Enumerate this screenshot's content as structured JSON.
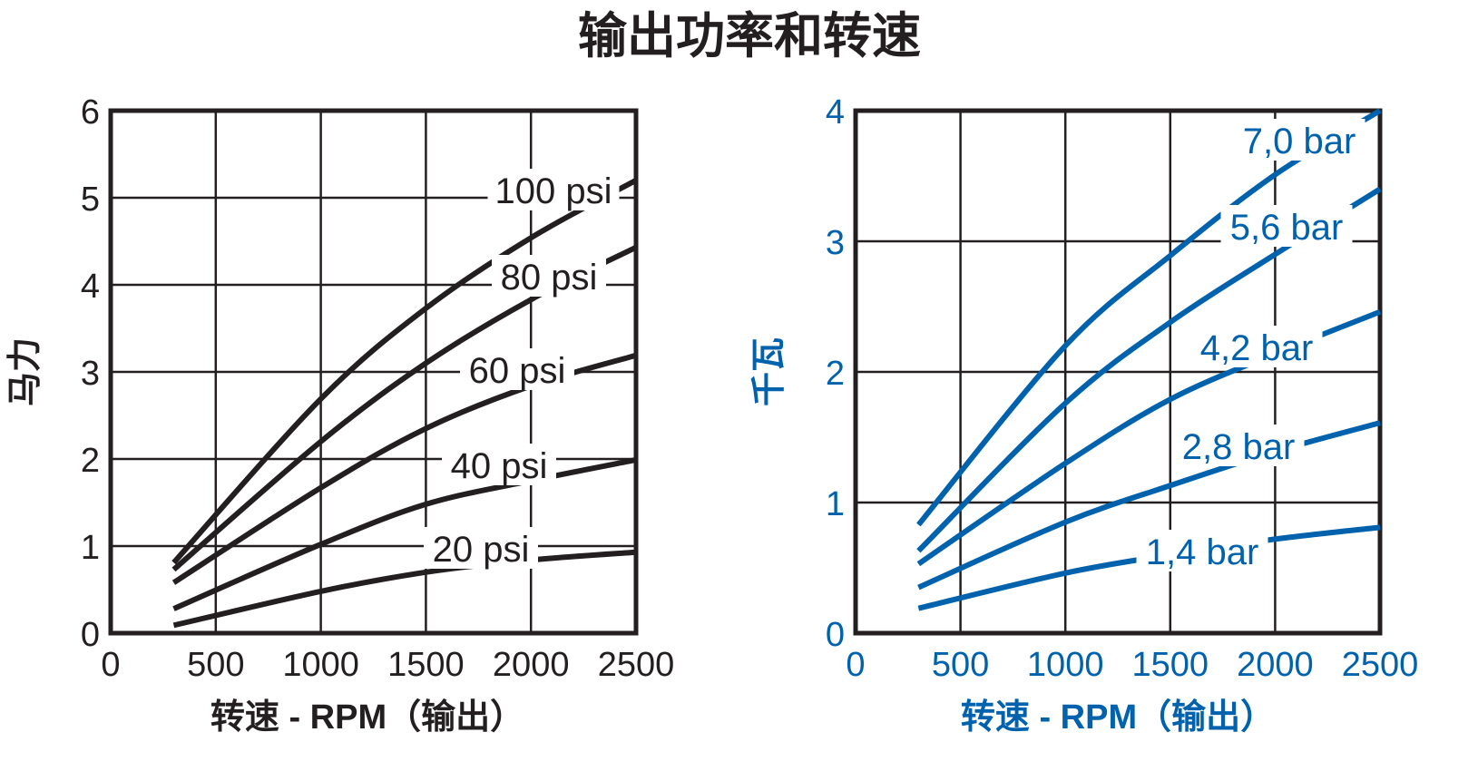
{
  "title": "输出功率和转速",
  "colors": {
    "left": "#231f20",
    "right": "#0061ad",
    "grid": "#231f20"
  },
  "chart_data": [
    {
      "type": "line",
      "xlabel": "转速 - RPM（输出）",
      "ylabel": "马力",
      "xlim": [
        0,
        2500
      ],
      "ylim": [
        0,
        6
      ],
      "xticks": [
        "0",
        "500",
        "1000",
        "1500",
        "2000",
        "2500"
      ],
      "yticks": [
        "0",
        "1",
        "2",
        "3",
        "4",
        "5",
        "6"
      ],
      "grid": true,
      "x": [
        300,
        1000,
        1500,
        2000,
        2500
      ],
      "series": [
        {
          "name": "100 psi",
          "values": [
            0.81,
            2.69,
            3.73,
            4.54,
            5.2
          ]
        },
        {
          "name": "80 psi",
          "values": [
            0.73,
            2.2,
            3.1,
            3.83,
            4.43
          ]
        },
        {
          "name": "60 psi",
          "values": [
            0.58,
            1.67,
            2.35,
            2.84,
            3.19
          ]
        },
        {
          "name": "40 psi",
          "values": [
            0.28,
            1.02,
            1.48,
            1.75,
            1.99
          ]
        },
        {
          "name": "20 psi",
          "values": [
            0.09,
            0.48,
            0.7,
            0.84,
            0.93
          ]
        }
      ]
    },
    {
      "type": "line",
      "xlabel": "转速 - RPM（输出）",
      "ylabel": "千瓦",
      "xlim": [
        0,
        2500
      ],
      "ylim": [
        0,
        4
      ],
      "xticks": [
        "0",
        "500",
        "1000",
        "1500",
        "2000",
        "2500"
      ],
      "yticks": [
        "0",
        "1",
        "2",
        "3",
        "4"
      ],
      "grid": true,
      "x": [
        300,
        1000,
        1500,
        2000,
        2500
      ],
      "series": [
        {
          "name": "7,0 bar",
          "values": [
            0.83,
            2.2,
            2.89,
            3.51,
            4.0
          ]
        },
        {
          "name": "5,6 bar",
          "values": [
            0.63,
            1.76,
            2.38,
            2.9,
            3.4
          ]
        },
        {
          "name": "4,2 bar",
          "values": [
            0.53,
            1.3,
            1.79,
            2.14,
            2.46
          ]
        },
        {
          "name": "2,8 bar",
          "values": [
            0.35,
            0.85,
            1.13,
            1.39,
            1.61
          ]
        },
        {
          "name": "1,4 bar",
          "values": [
            0.19,
            0.46,
            0.6,
            0.72,
            0.81
          ]
        }
      ]
    }
  ]
}
